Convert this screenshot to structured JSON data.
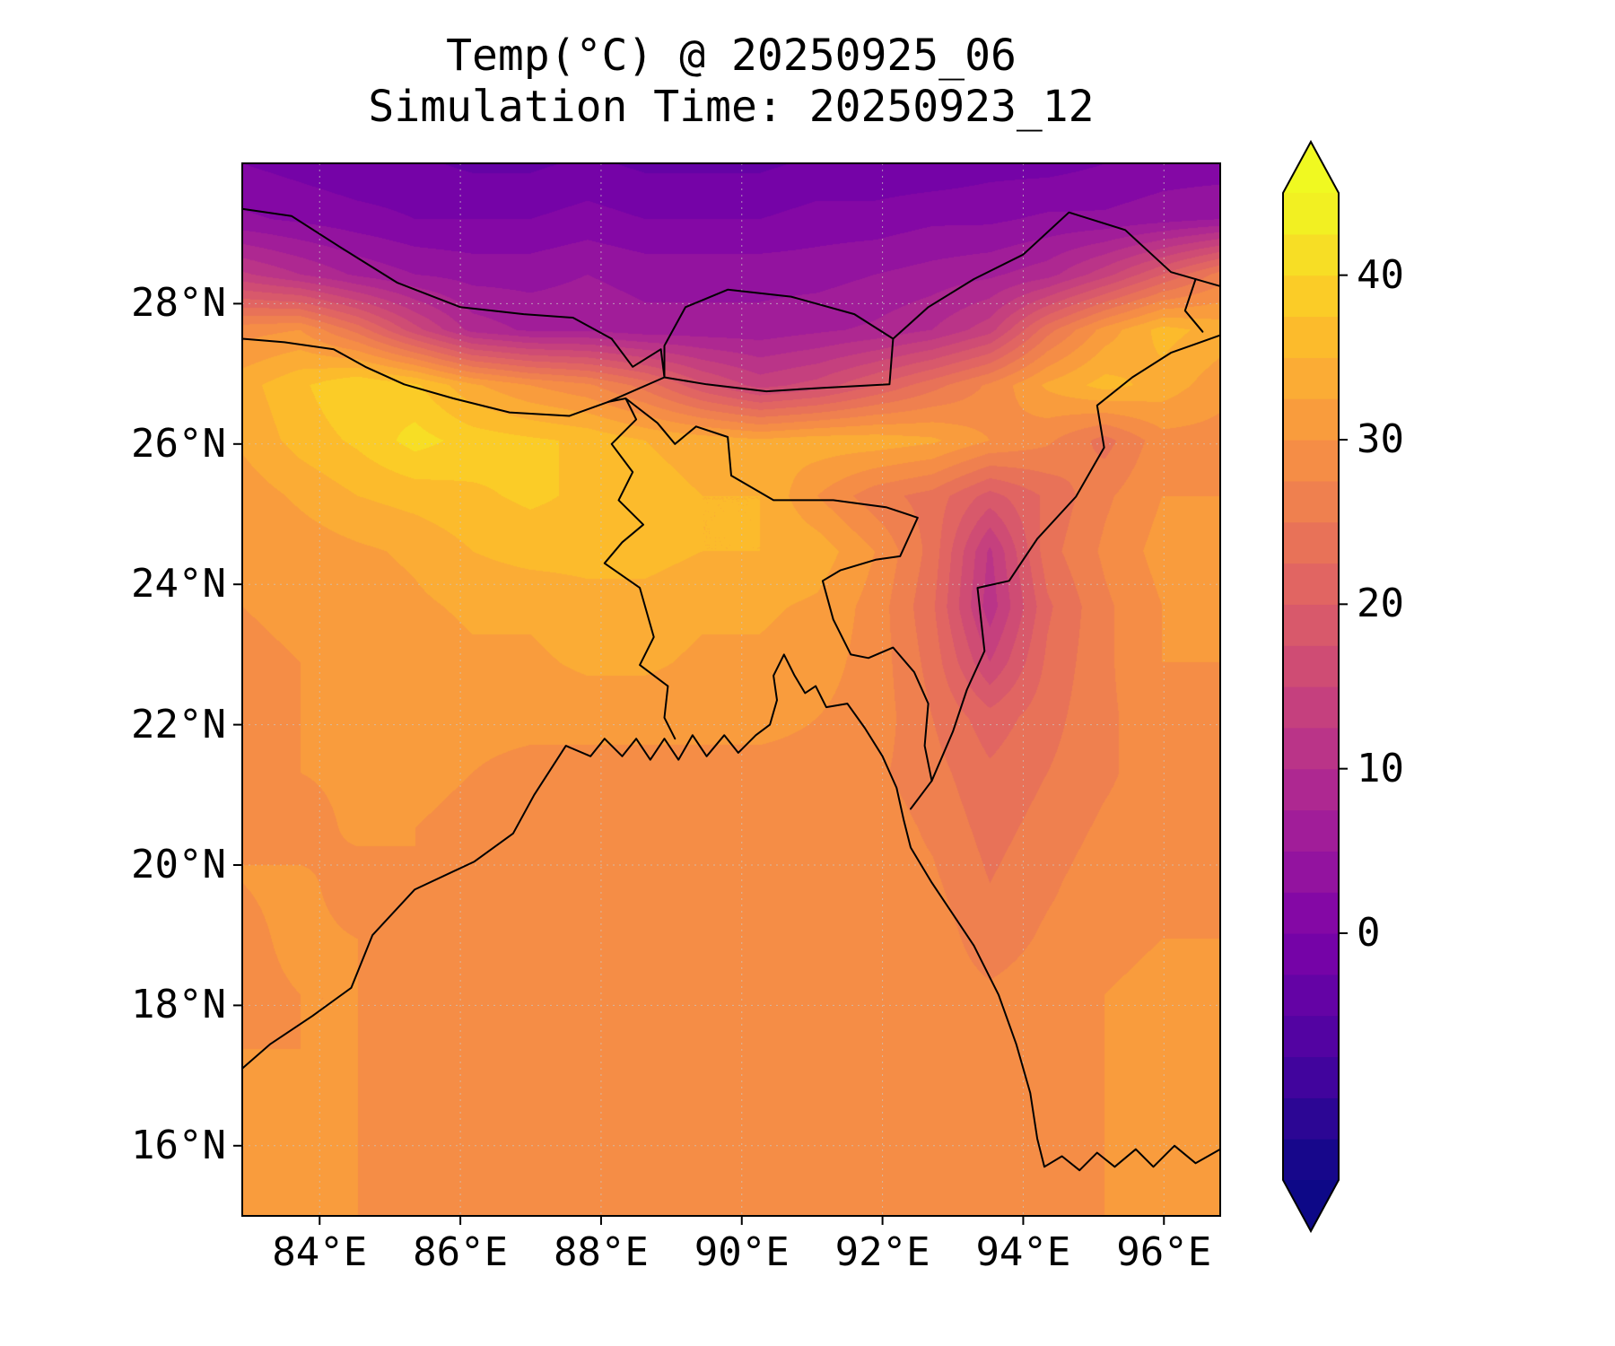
{
  "title": {
    "line1": "Temp(°C) @ 20250925_06",
    "line2": "Simulation Time: 20250923_12"
  },
  "axes": {
    "x_ticks": [
      {
        "value": 84,
        "label": "84°E"
      },
      {
        "value": 86,
        "label": "86°E"
      },
      {
        "value": 88,
        "label": "88°E"
      },
      {
        "value": 90,
        "label": "90°E"
      },
      {
        "value": 92,
        "label": "92°E"
      },
      {
        "value": 94,
        "label": "94°E"
      },
      {
        "value": 96,
        "label": "96°E"
      }
    ],
    "y_ticks": [
      {
        "value": 28,
        "label": "28°N"
      },
      {
        "value": 26,
        "label": "26°N"
      },
      {
        "value": 24,
        "label": "24°N"
      },
      {
        "value": 22,
        "label": "22°N"
      },
      {
        "value": 20,
        "label": "20°N"
      },
      {
        "value": 18,
        "label": "18°N"
      },
      {
        "value": 16,
        "label": "16°N"
      }
    ]
  },
  "colorbar": {
    "tick_values": [
      0,
      10,
      20,
      30,
      40
    ],
    "tick_labels": [
      "0",
      "10",
      "20",
      "30",
      "40"
    ],
    "vmin": -15,
    "vmax": 45,
    "interval": 2.5,
    "over_color": "#f0f921",
    "under_color": "#0d0887"
  },
  "chart_data": {
    "type": "heatmap",
    "subtype": "filled-contour-map",
    "title": "Temp(°C) @ 20250925_06",
    "subtitle": "Simulation Time: 20250923_12",
    "variable": "Temp(°C)",
    "valid_time": "20250925_06",
    "simulation_time": "20250923_12",
    "colormap": "plasma",
    "colormap_stops": [
      "#0d0887",
      "#4b03a1",
      "#7d03a8",
      "#a82296",
      "#cb4679",
      "#e56b5d",
      "#f89441",
      "#fdc328",
      "#f0f921"
    ],
    "levels": {
      "min": -15,
      "max": 45,
      "interval": 2.5
    },
    "extent": {
      "lon_min": 82.9,
      "lon_max": 96.8,
      "lat_min": 15.0,
      "lat_max": 30.0
    },
    "border_color": "#000000",
    "gridline_color": "#c8c8c8",
    "grid": {
      "lon_count": 18,
      "lat_count": 20,
      "note": "temperature °C on uniform grid, rows from lat_max (top) to lat_min (bottom), cols lon_min to lon_max; values estimated from figure",
      "values": [
        [
          0,
          -1,
          -2,
          -2,
          -3,
          -3,
          -2,
          -3,
          -3,
          -3,
          -2,
          -2,
          -2,
          -1,
          -1,
          0,
          1,
          1
        ],
        [
          3,
          2,
          1,
          0,
          0,
          0,
          1,
          0,
          0,
          0,
          1,
          1,
          2,
          2,
          3,
          3,
          4,
          5
        ],
        [
          13,
          10,
          7,
          5,
          4,
          4,
          5,
          4,
          4,
          4,
          4,
          5,
          6,
          7,
          9,
          14,
          20,
          26
        ],
        [
          29,
          30,
          24,
          16,
          9,
          7,
          7,
          6,
          6,
          6,
          7,
          8,
          10,
          14,
          24,
          31,
          36,
          34
        ],
        [
          34,
          37,
          40,
          38,
          33,
          30,
          28,
          24,
          18,
          14,
          16,
          20,
          24,
          28,
          33,
          36,
          34,
          31
        ],
        [
          33,
          36,
          38,
          41,
          39,
          38,
          37,
          35,
          34,
          33,
          34,
          34,
          33,
          30,
          28,
          24,
          29,
          29
        ],
        [
          31,
          33,
          35,
          36,
          37,
          38,
          37,
          36,
          35,
          35,
          30,
          26,
          24,
          19,
          23,
          27,
          30,
          30
        ],
        [
          30,
          31,
          32,
          33,
          35,
          36,
          36,
          36,
          35,
          35,
          34,
          30,
          24,
          12,
          24,
          28,
          31,
          31
        ],
        [
          30,
          31,
          31,
          32,
          33,
          33,
          34,
          34,
          33,
          33,
          32,
          29,
          23,
          11,
          22,
          27,
          30,
          31
        ],
        [
          29,
          30,
          31,
          31,
          32,
          32,
          33,
          33,
          32,
          32,
          31,
          29,
          24,
          15,
          23,
          27,
          30,
          30
        ],
        [
          29,
          30,
          30,
          31,
          31,
          31,
          31,
          31,
          31,
          31,
          30,
          29,
          25,
          21,
          24,
          27,
          29,
          30
        ],
        [
          29,
          30,
          31,
          31,
          30,
          29,
          29,
          29,
          29,
          29,
          29,
          28,
          26,
          23,
          25,
          27,
          29,
          29
        ],
        [
          30,
          28,
          31,
          30,
          29,
          29,
          29,
          29,
          29,
          29,
          29,
          29,
          27,
          24,
          26,
          28,
          29,
          29
        ],
        [
          30,
          31,
          28,
          30,
          29,
          29,
          29,
          29,
          29,
          29,
          29,
          29,
          28,
          25,
          27,
          29,
          30,
          29
        ],
        [
          29,
          31,
          30,
          29,
          29,
          29,
          29,
          29,
          29,
          29,
          29,
          29,
          29,
          26,
          28,
          29,
          30,
          30
        ],
        [
          29,
          30,
          30,
          29,
          29,
          29,
          29,
          29,
          29,
          29,
          29,
          29,
          29,
          28,
          29,
          30,
          31,
          30
        ],
        [
          30,
          30,
          30,
          29,
          29,
          29,
          29,
          29,
          29,
          29,
          29,
          29,
          29,
          28,
          29,
          30,
          31,
          31
        ],
        [
          30,
          31,
          30,
          29,
          29,
          29,
          29,
          29,
          29,
          29,
          29,
          29,
          29,
          29,
          29,
          30,
          31,
          31
        ],
        [
          30,
          31,
          30,
          29,
          29,
          29,
          29,
          29,
          29,
          29,
          29,
          29,
          29,
          29,
          29,
          30,
          31,
          31
        ],
        [
          31,
          31,
          30,
          29,
          29,
          29,
          29,
          29,
          29,
          29,
          29,
          29,
          29,
          29,
          29,
          30,
          30,
          31
        ]
      ]
    },
    "borders": {
      "coastline": [
        [
          82.9,
          17.1
        ],
        [
          83.3,
          17.45
        ],
        [
          83.9,
          17.85
        ],
        [
          84.45,
          18.25
        ],
        [
          84.75,
          19.0
        ],
        [
          85.35,
          19.65
        ],
        [
          86.2,
          20.05
        ],
        [
          86.75,
          20.45
        ],
        [
          87.05,
          21.0
        ],
        [
          87.5,
          21.7
        ],
        [
          87.85,
          21.55
        ],
        [
          88.05,
          21.8
        ],
        [
          88.3,
          21.55
        ],
        [
          88.5,
          21.8
        ],
        [
          88.7,
          21.5
        ],
        [
          88.9,
          21.8
        ],
        [
          89.1,
          21.5
        ],
        [
          89.3,
          21.85
        ],
        [
          89.5,
          21.55
        ],
        [
          89.75,
          21.85
        ],
        [
          89.95,
          21.6
        ],
        [
          90.2,
          21.85
        ],
        [
          90.4,
          22.0
        ],
        [
          90.5,
          22.35
        ],
        [
          90.45,
          22.7
        ],
        [
          90.6,
          23.0
        ],
        [
          90.75,
          22.7
        ],
        [
          90.9,
          22.45
        ],
        [
          91.05,
          22.55
        ],
        [
          91.2,
          22.25
        ],
        [
          91.5,
          22.3
        ],
        [
          91.75,
          21.95
        ],
        [
          92.0,
          21.55
        ],
        [
          92.2,
          21.1
        ],
        [
          92.3,
          20.65
        ],
        [
          92.4,
          20.25
        ],
        [
          92.7,
          19.75
        ],
        [
          93.0,
          19.3
        ],
        [
          93.3,
          18.85
        ],
        [
          93.65,
          18.15
        ],
        [
          93.9,
          17.45
        ],
        [
          94.1,
          16.75
        ],
        [
          94.2,
          16.1
        ],
        [
          94.3,
          15.7
        ],
        [
          94.55,
          15.85
        ],
        [
          94.8,
          15.65
        ],
        [
          95.05,
          15.9
        ],
        [
          95.3,
          15.7
        ],
        [
          95.6,
          15.95
        ],
        [
          95.85,
          15.7
        ],
        [
          96.15,
          16.0
        ],
        [
          96.45,
          15.75
        ],
        [
          96.8,
          15.95
        ]
      ],
      "nepal_south": [
        [
          82.9,
          27.5
        ],
        [
          83.5,
          27.45
        ],
        [
          84.2,
          27.35
        ],
        [
          84.65,
          27.1
        ],
        [
          85.2,
          26.85
        ],
        [
          85.9,
          26.65
        ],
        [
          86.7,
          26.45
        ],
        [
          87.55,
          26.4
        ],
        [
          88.1,
          26.6
        ]
      ],
      "nepal_north": [
        [
          82.9,
          29.35
        ],
        [
          83.6,
          29.25
        ],
        [
          84.3,
          28.8
        ],
        [
          85.1,
          28.3
        ],
        [
          86.0,
          27.95
        ],
        [
          86.9,
          27.85
        ],
        [
          87.6,
          27.8
        ],
        [
          88.15,
          27.5
        ]
      ],
      "sikkim_east": [
        [
          88.15,
          27.5
        ],
        [
          88.45,
          27.1
        ],
        [
          88.85,
          27.35
        ],
        [
          88.9,
          26.95
        ],
        [
          88.1,
          26.6
        ]
      ],
      "bhutan": [
        [
          88.9,
          26.95
        ],
        [
          89.5,
          26.85
        ],
        [
          90.35,
          26.75
        ],
        [
          91.15,
          26.8
        ],
        [
          92.1,
          26.85
        ],
        [
          92.15,
          27.5
        ],
        [
          91.6,
          27.85
        ],
        [
          90.7,
          28.1
        ],
        [
          89.8,
          28.2
        ],
        [
          89.2,
          27.95
        ],
        [
          88.9,
          27.4
        ],
        [
          88.9,
          26.95
        ]
      ],
      "bangladesh_west": [
        [
          88.1,
          26.6
        ],
        [
          88.35,
          26.65
        ],
        [
          88.5,
          26.35
        ],
        [
          88.15,
          26.0
        ],
        [
          88.45,
          25.6
        ],
        [
          88.25,
          25.2
        ],
        [
          88.6,
          24.85
        ],
        [
          88.3,
          24.6
        ],
        [
          88.05,
          24.3
        ],
        [
          88.55,
          23.95
        ],
        [
          88.75,
          23.25
        ],
        [
          88.55,
          22.85
        ],
        [
          88.95,
          22.55
        ],
        [
          88.9,
          22.1
        ],
        [
          89.05,
          21.8
        ]
      ],
      "bangladesh_north_east": [
        [
          88.35,
          26.65
        ],
        [
          88.8,
          26.3
        ],
        [
          89.05,
          26.0
        ],
        [
          89.35,
          26.25
        ],
        [
          89.8,
          26.1
        ],
        [
          89.85,
          25.55
        ],
        [
          90.45,
          25.2
        ],
        [
          91.3,
          25.2
        ],
        [
          92.05,
          25.1
        ],
        [
          92.5,
          24.95
        ],
        [
          92.25,
          24.4
        ],
        [
          91.9,
          24.35
        ],
        [
          91.4,
          24.2
        ],
        [
          91.15,
          24.05
        ],
        [
          91.3,
          23.5
        ],
        [
          91.55,
          23.0
        ],
        [
          91.8,
          22.95
        ],
        [
          92.15,
          23.1
        ],
        [
          92.45,
          22.75
        ],
        [
          92.65,
          22.3
        ],
        [
          92.6,
          21.7
        ],
        [
          92.7,
          21.2
        ],
        [
          92.4,
          20.8
        ]
      ],
      "india_myanmar": [
        [
          92.7,
          21.2
        ],
        [
          93.0,
          21.9
        ],
        [
          93.2,
          22.5
        ],
        [
          93.45,
          23.05
        ],
        [
          93.35,
          23.95
        ],
        [
          93.8,
          24.05
        ],
        [
          94.2,
          24.65
        ],
        [
          94.75,
          25.25
        ],
        [
          95.15,
          25.95
        ],
        [
          95.05,
          26.55
        ],
        [
          95.55,
          26.95
        ],
        [
          96.1,
          27.3
        ],
        [
          96.8,
          27.55
        ]
      ],
      "himalaya_east": [
        [
          92.15,
          27.5
        ],
        [
          92.65,
          27.95
        ],
        [
          93.3,
          28.35
        ],
        [
          94.0,
          28.7
        ],
        [
          94.65,
          29.3
        ],
        [
          95.45,
          29.05
        ],
        [
          96.1,
          28.45
        ],
        [
          96.8,
          28.25
        ]
      ],
      "northeast_spur": [
        [
          96.45,
          28.35
        ],
        [
          96.3,
          27.9
        ],
        [
          96.55,
          27.6
        ]
      ]
    }
  }
}
